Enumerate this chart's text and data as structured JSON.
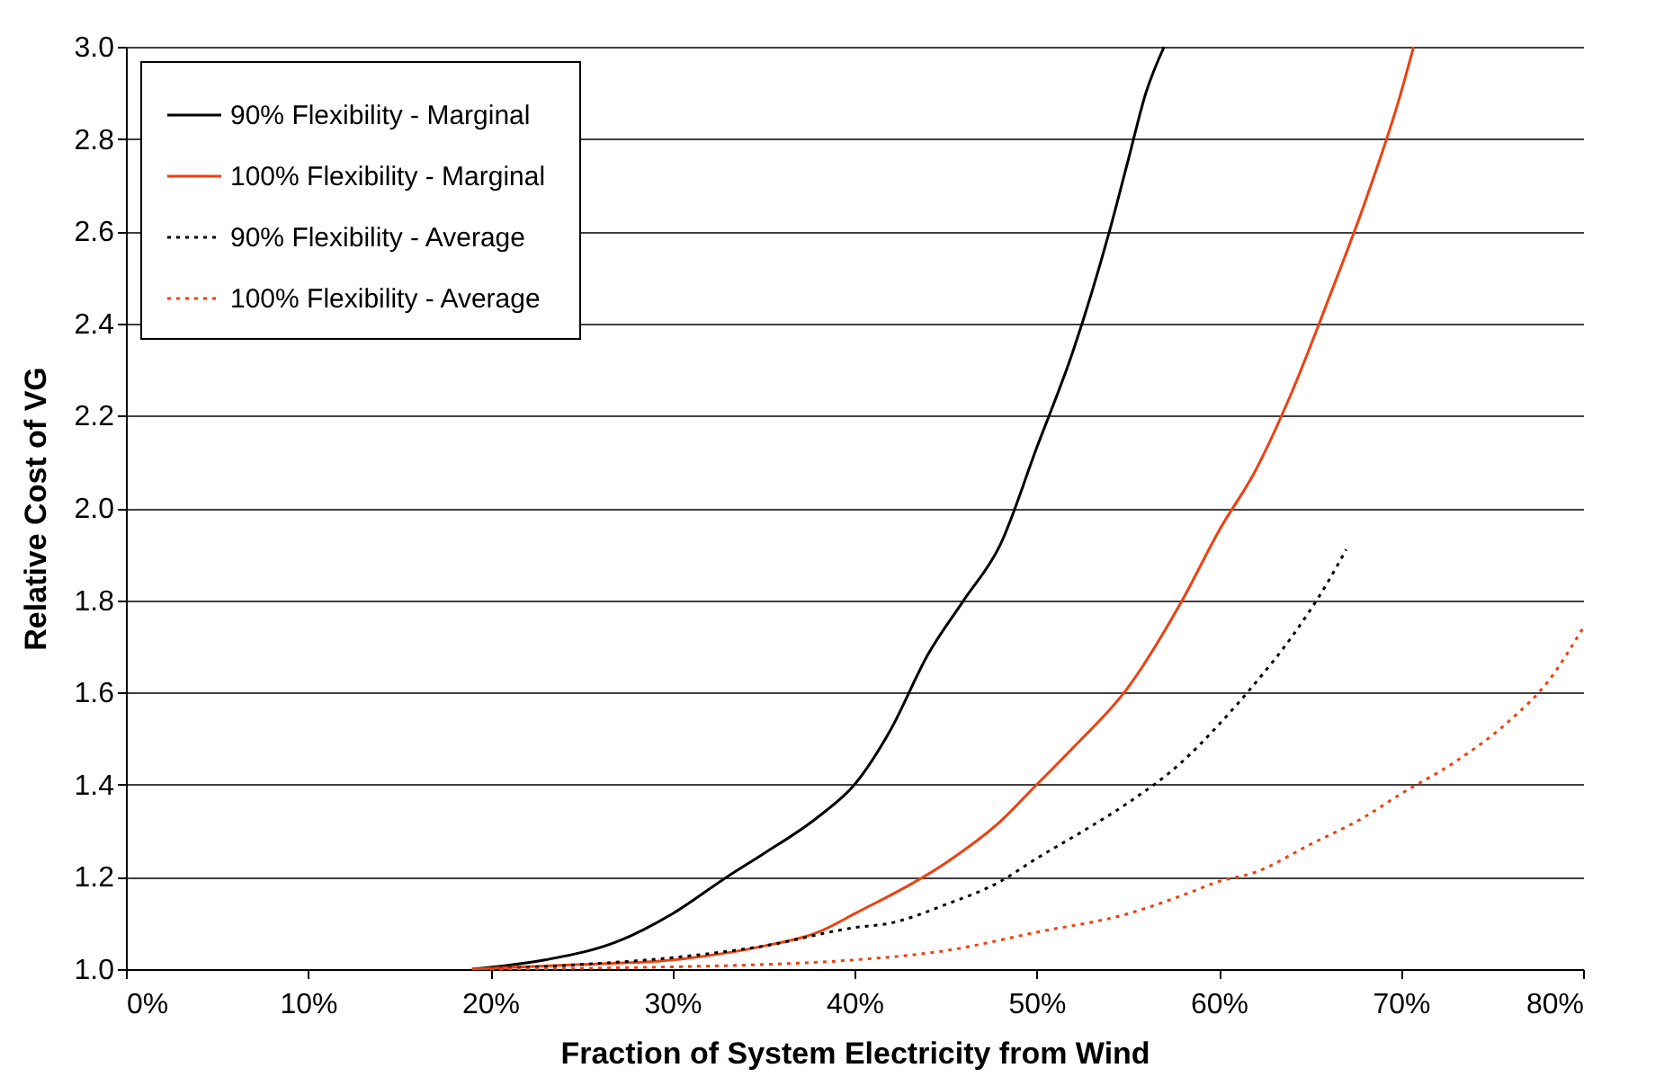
{
  "chart_data": {
    "type": "line",
    "xlabel": "Fraction of System Electricity from Wind",
    "ylabel": "Relative Cost of VG",
    "xlim": [
      0,
      80
    ],
    "xticks": [
      {
        "value": 0,
        "label": "0%"
      },
      {
        "value": 10,
        "label": "10%"
      },
      {
        "value": 20,
        "label": "20%"
      },
      {
        "value": 30,
        "label": "30%"
      },
      {
        "value": 40,
        "label": "40%"
      },
      {
        "value": 50,
        "label": "50%"
      },
      {
        "value": 60,
        "label": "60%"
      },
      {
        "value": 70,
        "label": "70%"
      },
      {
        "value": 80,
        "label": "80%"
      }
    ],
    "ylim": [
      1,
      3
    ],
    "yticks": [
      {
        "value": 1,
        "label": "1.0"
      },
      1.2,
      1.4,
      1.6,
      1.8,
      {
        "value": 2,
        "label": "2.0"
      },
      2.2,
      2.4,
      2.6,
      2.8,
      {
        "value": 3,
        "label": "3.0"
      }
    ],
    "grid": "y",
    "legend": "top left",
    "marker": "none",
    "series": [
      {
        "name": "90%  Flexibility - Marginal",
        "color": "#000000",
        "line_style": "solid",
        "x": [
          19,
          23,
          27,
          30,
          33,
          35,
          38,
          40,
          42,
          44,
          46,
          48,
          50,
          52,
          54,
          55,
          56,
          57
        ],
        "values": [
          1.0,
          1.02,
          1.06,
          1.12,
          1.2,
          1.25,
          1.33,
          1.4,
          1.52,
          1.68,
          1.8,
          1.92,
          2.13,
          2.34,
          2.6,
          2.75,
          2.9,
          3.0
        ]
      },
      {
        "name": "100%  Flexibility - Marginal",
        "color": "#ee4010",
        "line_style": "solid",
        "x": [
          19,
          25,
          30,
          35,
          38,
          40,
          45,
          48,
          50,
          52,
          55,
          58,
          60,
          62,
          64,
          66,
          68,
          70,
          70.7
        ],
        "values": [
          1.0,
          1.01,
          1.02,
          1.05,
          1.08,
          1.12,
          1.23,
          1.32,
          1.4,
          1.48,
          1.61,
          1.8,
          1.95,
          2.08,
          2.25,
          2.45,
          2.66,
          2.9,
          3.0
        ]
      },
      {
        "name": "90%  Flexibility - Average",
        "color": "#000000",
        "line_style": "dotted",
        "x": [
          20,
          25,
          30,
          35,
          40,
          42,
          45,
          48,
          50,
          53,
          55,
          58,
          60,
          62,
          64,
          66,
          67
        ],
        "values": [
          1.0,
          1.01,
          1.025,
          1.05,
          1.09,
          1.1,
          1.14,
          1.19,
          1.24,
          1.31,
          1.36,
          1.45,
          1.53,
          1.62,
          1.72,
          1.84,
          1.91
        ]
      },
      {
        "name": "100%  Flexibility - Average",
        "color": "#ee4010",
        "line_style": "dotted",
        "x": [
          20,
          30,
          35,
          40,
          45,
          50,
          55,
          58,
          60,
          62,
          65,
          68,
          70,
          73,
          76,
          78,
          80
        ],
        "values": [
          1.0,
          1.005,
          1.01,
          1.02,
          1.04,
          1.08,
          1.12,
          1.16,
          1.19,
          1.21,
          1.27,
          1.33,
          1.38,
          1.45,
          1.54,
          1.62,
          1.74
        ]
      }
    ]
  }
}
